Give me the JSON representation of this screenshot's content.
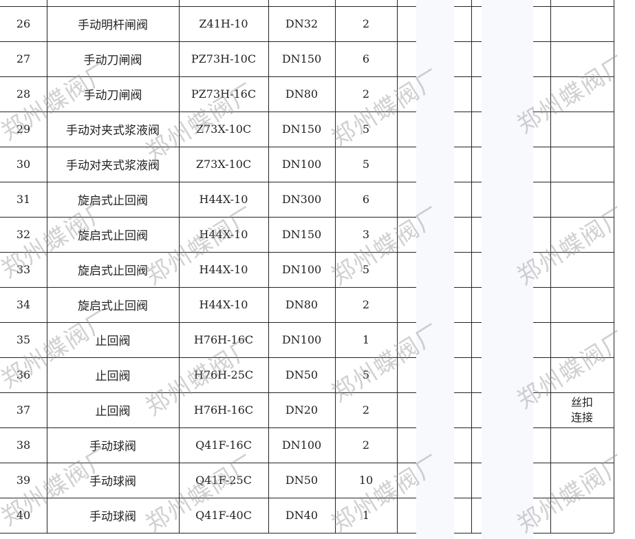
{
  "watermark": "郑州蝶阀厂",
  "rows": [
    {
      "no": "26",
      "name": "手动明杆闸阀",
      "model": "Z41H-10",
      "dn": "DN32",
      "qty": "2",
      "note": ""
    },
    {
      "no": "27",
      "name": "手动刀闸阀",
      "model": "PZ73H-10C",
      "dn": "DN150",
      "qty": "6",
      "note": ""
    },
    {
      "no": "28",
      "name": "手动刀闸阀",
      "model": "PZ73H-16C",
      "dn": "DN80",
      "qty": "2",
      "note": ""
    },
    {
      "no": "29",
      "name": "手动对夹式浆液阀",
      "model": "Z73X-10C",
      "dn": "DN150",
      "qty": "5",
      "note": ""
    },
    {
      "no": "30",
      "name": "手动对夹式浆液阀",
      "model": "Z73X-10C",
      "dn": "DN100",
      "qty": "5",
      "note": ""
    },
    {
      "no": "31",
      "name": "旋启式止回阀",
      "model": "H44X-10",
      "dn": "DN300",
      "qty": "6",
      "note": ""
    },
    {
      "no": "32",
      "name": "旋启式止回阀",
      "model": "H44X-10",
      "dn": "DN150",
      "qty": "3",
      "note": ""
    },
    {
      "no": "33",
      "name": "旋启式止回阀",
      "model": "H44X-10",
      "dn": "DN100",
      "qty": "5",
      "note": ""
    },
    {
      "no": "34",
      "name": "旋启式止回阀",
      "model": "H44X-10",
      "dn": "DN80",
      "qty": "2",
      "note": ""
    },
    {
      "no": "35",
      "name": "止回阀",
      "model": "H76H-16C",
      "dn": "DN100",
      "qty": "1",
      "note": ""
    },
    {
      "no": "36",
      "name": "止回阀",
      "model": "H76H-25C",
      "dn": "DN50",
      "qty": "5",
      "note": ""
    },
    {
      "no": "37",
      "name": "止回阀",
      "model": "H76H-16C",
      "dn": "DN20",
      "qty": "2",
      "note": "丝扣\n连接"
    },
    {
      "no": "38",
      "name": "手动球阀",
      "model": "Q41F-16C",
      "dn": "DN100",
      "qty": "2",
      "note": ""
    },
    {
      "no": "39",
      "name": "手动球阀",
      "model": "Q41F-25C",
      "dn": "DN50",
      "qty": "10",
      "note": ""
    },
    {
      "no": "40",
      "name": "手动球阀",
      "model": "Q41F-40C",
      "dn": "DN40",
      "qty": "1",
      "note": ""
    }
  ]
}
